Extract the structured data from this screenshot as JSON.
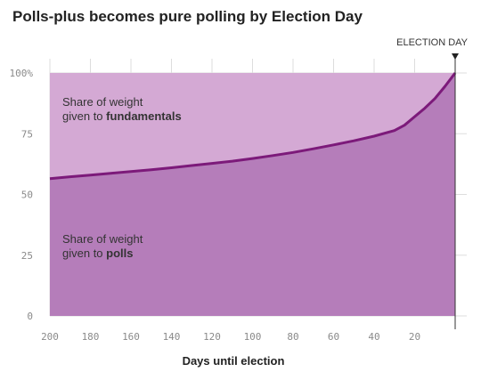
{
  "title": "Polls-plus becomes pure polling by Election Day",
  "chart_data": {
    "type": "area",
    "title": "Polls-plus becomes pure polling by Election Day",
    "xlabel": "Days until election",
    "ylabel": "",
    "x_reversed": true,
    "xlim": [
      200,
      0
    ],
    "ylim": [
      0,
      100
    ],
    "grid": true,
    "x_ticks": [
      200,
      180,
      160,
      140,
      120,
      100,
      80,
      60,
      40,
      20
    ],
    "x_tick_labels": [
      "200",
      "180",
      "160",
      "140",
      "120",
      "100",
      "80",
      "60",
      "40",
      "20"
    ],
    "y_ticks": [
      0,
      25,
      50,
      75,
      100
    ],
    "y_tick_labels": [
      "0",
      "25",
      "50",
      "75",
      "100%"
    ],
    "x": [
      200,
      190,
      180,
      170,
      160,
      150,
      140,
      130,
      120,
      110,
      100,
      90,
      80,
      70,
      60,
      50,
      40,
      30,
      25,
      20,
      15,
      10,
      5,
      0
    ],
    "series": [
      {
        "name": "polls",
        "values": [
          56.5,
          57.3,
          58.0,
          58.7,
          59.4,
          60.2,
          61.0,
          61.9,
          62.8,
          63.7,
          64.8,
          66.0,
          67.3,
          68.8,
          70.4,
          72.1,
          74.0,
          76.3,
          78.5,
          82.0,
          85.5,
          89.5,
          94.5,
          100
        ],
        "label_prefix": "Share of weight",
        "label_line2": "given to",
        "label_bold": "polls",
        "color": "#b57dba"
      },
      {
        "name": "fundamentals",
        "label_prefix": "Share of weight",
        "label_line2": "given to",
        "label_bold": "fundamentals",
        "color": "#d4a9d4"
      }
    ],
    "line_color": "#7c1a7a",
    "annotations": [
      {
        "text": "ELECTION DAY",
        "x": 0
      }
    ]
  }
}
